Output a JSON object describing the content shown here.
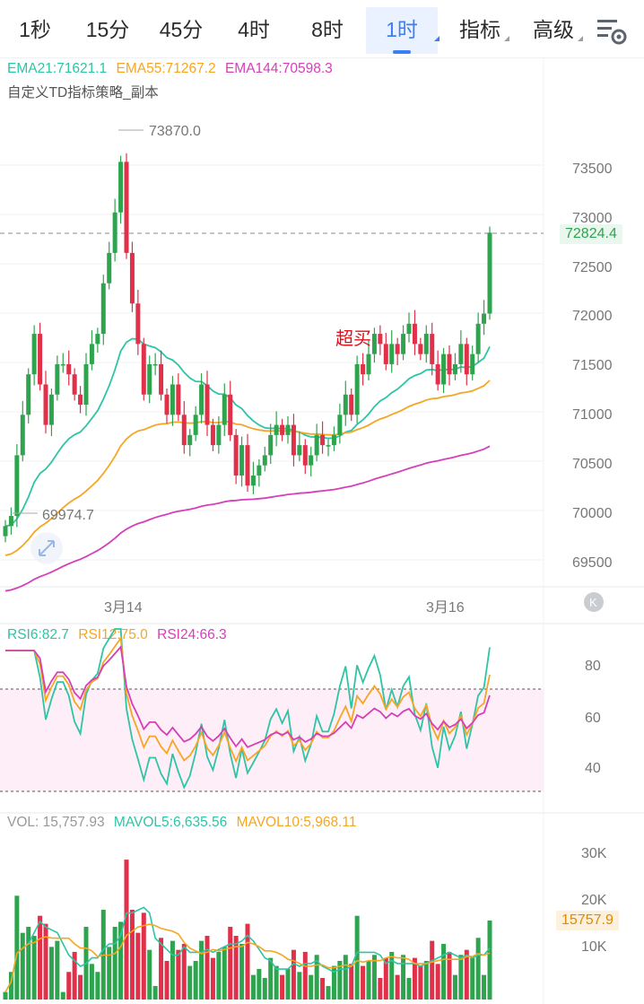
{
  "tabs": [
    {
      "label": "1秒",
      "active": false,
      "dropdown": false
    },
    {
      "label": "15分",
      "active": false,
      "dropdown": false
    },
    {
      "label": "45分",
      "active": false,
      "dropdown": false
    },
    {
      "label": "4时",
      "active": false,
      "dropdown": false
    },
    {
      "label": "8时",
      "active": false,
      "dropdown": false
    },
    {
      "label": "1时",
      "active": true,
      "dropdown": true
    },
    {
      "label": "指标",
      "active": false,
      "dropdown": true
    },
    {
      "label": "高级",
      "active": false,
      "dropdown": true
    }
  ],
  "settings_icon": "chart-settings-icon",
  "main": {
    "ema_legend": [
      {
        "text": "EMA21:71621.1",
        "color": "#2ec4a6"
      },
      {
        "text": "EMA55:71267.2",
        "color": "#f5a623"
      },
      {
        "text": "EMA144:70598.3",
        "color": "#d63fb8"
      }
    ],
    "strategy_label": "自定义TD指标策略_副本",
    "high_marker": "73870.0",
    "low_marker": "69974.7",
    "annotation": "超买",
    "current_price": "72824.4",
    "price_axis": [
      "73500",
      "73000",
      "72500",
      "72000",
      "71500",
      "71000",
      "70500",
      "70000",
      "69500"
    ],
    "date_labels": [
      "3月14",
      "3月16"
    ],
    "nav_icon": "back-to-latest-icon",
    "expand_icon": "expand-arrows-icon"
  },
  "rsi": {
    "legend": [
      {
        "text": "RSI6:82.7",
        "color": "#2ec4a6"
      },
      {
        "text": "RSI12:75.0",
        "color": "#f5a623"
      },
      {
        "text": "RSI24:66.3",
        "color": "#d63fb8"
      }
    ],
    "axis": [
      "80",
      "60",
      "40"
    ]
  },
  "vol": {
    "legend": [
      {
        "text": "VOL: 15,757.93",
        "color": "#999999"
      },
      {
        "text": "MAVOL5:6,635.56",
        "color": "#2ec4a6"
      },
      {
        "text": "MAVOL10:5,968.11",
        "color": "#f5a623"
      }
    ],
    "axis": [
      "30K",
      "20K",
      "10K"
    ],
    "current": "15757.9"
  },
  "colors": {
    "up": "#2ea44f",
    "down": "#e0304a",
    "ema21": "#2ec4a6",
    "ema55": "#f5a623",
    "ema144": "#d63fb8",
    "accent": "#3c7ef3"
  },
  "chart_data": {
    "type": "candlestick",
    "timeframe": "1时",
    "price_range": [
      69300,
      74000
    ],
    "ohlc_close": [
      69900,
      70000,
      70600,
      71000,
      71400,
      71800,
      71300,
      70900,
      71200,
      71500,
      71500,
      71400,
      71200,
      71100,
      71500,
      71700,
      71800,
      72300,
      72600,
      73000,
      73500,
      72600,
      72100,
      71700,
      71200,
      71500,
      71500,
      71200,
      71000,
      71300,
      71000,
      70700,
      70800,
      71000,
      71300,
      70900,
      70700,
      70900,
      71200,
      70800,
      70400,
      70700,
      70300,
      70400,
      70500,
      70600,
      70800,
      70900,
      70800,
      70900,
      70600,
      70700,
      70500,
      70600,
      70800,
      70700,
      70700,
      70800,
      71000,
      71200,
      71000,
      71500,
      71400,
      71600,
      71800,
      71700,
      71500,
      71700,
      71600,
      71800,
      71900,
      71700,
      71600,
      71800,
      71500,
      71300,
      71600,
      71400,
      71500,
      71700,
      71400,
      71600,
      71900,
      72000,
      72800
    ]
  }
}
